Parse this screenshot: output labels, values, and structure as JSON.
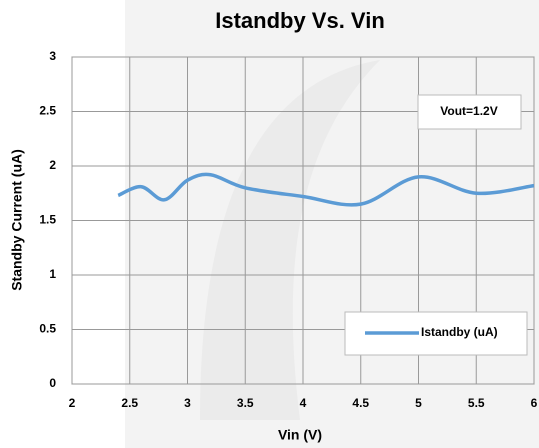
{
  "chart_data": {
    "type": "line",
    "title": "Istandby Vs. Vin",
    "x_label": "Vin (V)",
    "y_label": "Standby Current (uA)",
    "x": [
      2.4,
      2.6,
      2.8,
      3.0,
      3.2,
      3.5,
      4.0,
      4.5,
      5.0,
      5.5,
      6.0
    ],
    "series": [
      {
        "name": "Istandby (uA)",
        "color": "#5b9bd5",
        "values": [
          1.73,
          1.81,
          1.69,
          1.87,
          1.92,
          1.8,
          1.72,
          1.65,
          1.9,
          1.75,
          1.82
        ]
      }
    ],
    "xlim": [
      2,
      6
    ],
    "xticks": [
      2,
      2.5,
      3,
      3.5,
      4,
      4.5,
      5,
      5.5,
      6
    ],
    "ylim": [
      0,
      3
    ],
    "yticks": [
      0,
      0.5,
      1,
      1.5,
      2,
      2.5,
      3
    ],
    "grid": true,
    "smooth": true,
    "legend": "lower right",
    "annotations": [
      "Vout=1.2V"
    ]
  }
}
